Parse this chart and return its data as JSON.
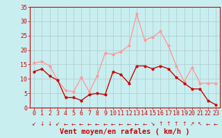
{
  "hours": [
    0,
    1,
    2,
    3,
    4,
    5,
    6,
    7,
    8,
    9,
    10,
    11,
    12,
    13,
    14,
    15,
    16,
    17,
    18,
    19,
    20,
    21,
    22,
    23
  ],
  "wind_avg": [
    12.5,
    13.5,
    11.0,
    9.5,
    3.5,
    3.5,
    2.5,
    4.5,
    5.0,
    4.5,
    12.5,
    11.5,
    8.5,
    14.5,
    14.5,
    13.5,
    14.5,
    13.5,
    10.5,
    8.5,
    6.5,
    6.5,
    2.5,
    1.0
  ],
  "wind_gust": [
    15.5,
    16.0,
    14.5,
    9.5,
    6.0,
    5.5,
    10.5,
    5.5,
    11.0,
    19.0,
    18.5,
    19.5,
    21.5,
    32.5,
    23.5,
    24.5,
    26.5,
    21.5,
    14.5,
    9.0,
    14.0,
    8.5,
    8.5,
    8.5
  ],
  "avg_color": "#cc0000",
  "gust_color": "#ff9999",
  "bg_color": "#c8eef0",
  "grid_color": "#b0c8cc",
  "axis_color": "#cc0000",
  "ylabel_values": [
    0,
    5,
    10,
    15,
    20,
    25,
    30,
    35
  ],
  "ylim": [
    0,
    35
  ],
  "xlabel": "Vent moyen/en rafales ( km/h )",
  "arrow_symbols": [
    "↙",
    "↓",
    "↓",
    "↙",
    "←",
    "←",
    "←",
    "←",
    "←",
    "←",
    "←",
    "←",
    "←",
    "←",
    "←",
    "↘",
    "↑",
    "↑",
    "↑",
    "↑",
    "↗",
    "↖",
    "←",
    "←"
  ],
  "tick_fontsize": 6.0,
  "label_fontsize": 7.5,
  "arrow_fontsize": 5.5
}
